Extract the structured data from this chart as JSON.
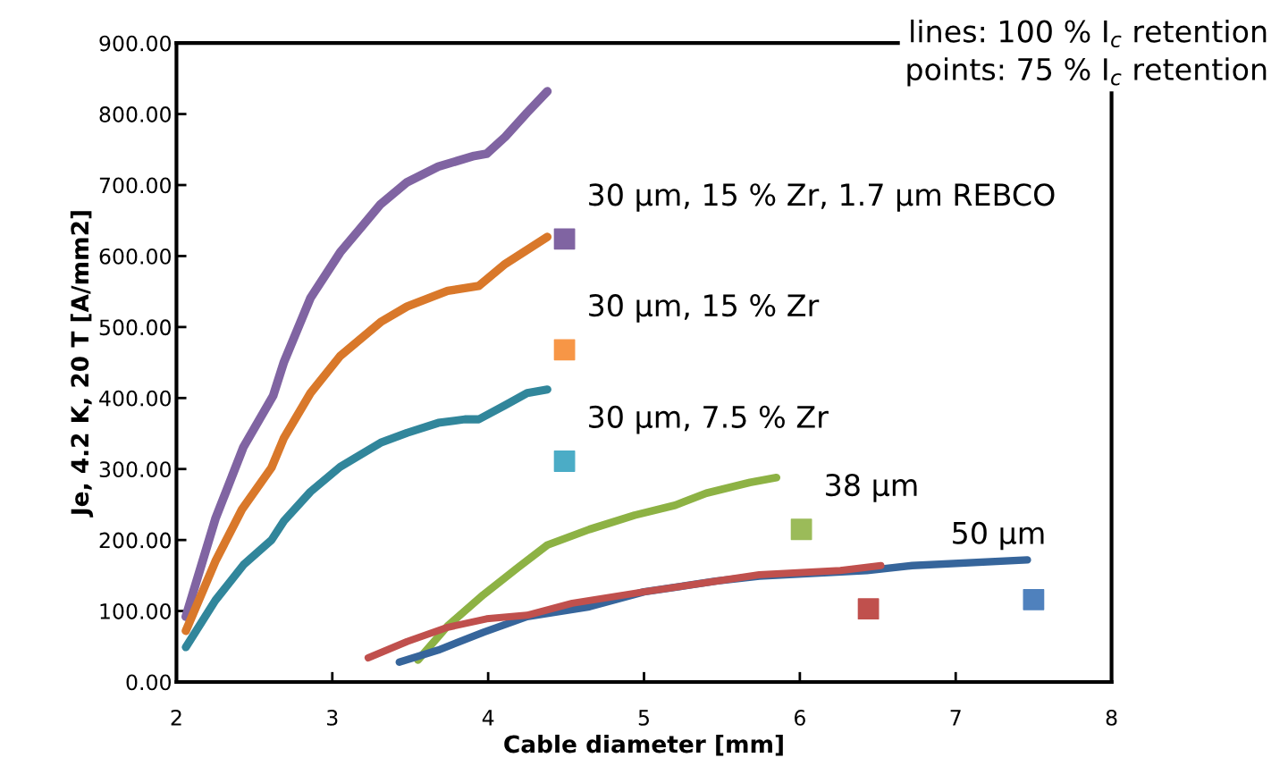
{
  "chart_data": {
    "type": "line",
    "xlabel": "Cable diameter [mm]",
    "ylabel": "Je, 4.2 K, 20 T [A/mm2]",
    "xlim": [
      2,
      8
    ],
    "xticks": [
      2,
      3,
      4,
      5,
      6,
      7,
      8
    ],
    "ylim": [
      0,
      900
    ],
    "yticks": [
      {
        "value": 0,
        "label": "0.00"
      },
      {
        "value": 100,
        "label": "100.00"
      },
      {
        "value": 200,
        "label": "200.00"
      },
      {
        "value": 300,
        "label": "300.00"
      },
      {
        "value": 400,
        "label": "400.00"
      },
      {
        "value": 500,
        "label": "500.00"
      },
      {
        "value": 600,
        "label": "600.00"
      },
      {
        "value": 700,
        "label": "700.00"
      },
      {
        "value": 800,
        "label": "800.00"
      },
      {
        "value": 900,
        "label": "900.00"
      }
    ],
    "grid": false,
    "legend": false,
    "series": [
      {
        "color": "#8064a2",
        "x": [
          2.06,
          2.25,
          2.43,
          2.62,
          2.69,
          2.86,
          3.05,
          3.31,
          3.48,
          3.68,
          3.91,
          3.99,
          4.11,
          4.25,
          4.38
        ],
        "values": [
          92,
          230,
          331,
          403,
          451,
          541,
          605,
          673,
          704,
          726,
          741,
          744,
          768,
          802,
          832
        ]
      },
      {
        "color": "#d9782a",
        "x": [
          2.06,
          2.25,
          2.42,
          2.61,
          2.69,
          2.86,
          3.05,
          3.31,
          3.48,
          3.74,
          3.94,
          4.11,
          4.38
        ],
        "values": [
          72,
          170,
          243,
          302,
          344,
          407,
          459,
          507,
          529,
          551,
          558,
          589,
          627
        ]
      },
      {
        "color": "#31869b",
        "x": [
          2.06,
          2.25,
          2.43,
          2.61,
          2.69,
          2.86,
          3.05,
          3.31,
          3.48,
          3.68,
          3.85,
          3.94,
          4.11,
          4.25,
          4.38
        ],
        "values": [
          49,
          115,
          165,
          200,
          227,
          268,
          303,
          337,
          351,
          365,
          370,
          370,
          390,
          407,
          412
        ]
      },
      {
        "color": "#8db244",
        "x": [
          3.55,
          3.74,
          3.97,
          4.19,
          4.38,
          4.65,
          4.94,
          5.2,
          5.4,
          5.68,
          5.85
        ],
        "values": [
          31,
          79,
          123,
          161,
          193,
          215,
          235,
          249,
          266,
          281,
          288
        ]
      },
      {
        "color": "#36659b",
        "x": [
          3.43,
          3.68,
          3.97,
          4.25,
          4.65,
          5.0,
          5.46,
          5.74,
          6.43,
          6.72,
          7.46
        ],
        "values": [
          28,
          45,
          70,
          92,
          106,
          127,
          142,
          149,
          157,
          164,
          172
        ]
      },
      {
        "color": "#c0504d",
        "x": [
          3.23,
          3.48,
          3.74,
          3.99,
          4.25,
          4.54,
          5.0,
          5.46,
          5.74,
          6.26,
          6.52
        ],
        "values": [
          34,
          57,
          77,
          89,
          94,
          111,
          127,
          142,
          151,
          157,
          164
        ]
      },
      {
        "type": "scatter",
        "marker": "square",
        "color": "#8064a2",
        "x": [
          4.49
        ],
        "values": [
          624
        ]
      },
      {
        "type": "scatter",
        "marker": "square",
        "color": "#f79646",
        "x": [
          4.49
        ],
        "values": [
          468
        ]
      },
      {
        "type": "scatter",
        "marker": "square",
        "color": "#4bacc6",
        "x": [
          4.49
        ],
        "values": [
          311
        ]
      },
      {
        "type": "scatter",
        "marker": "square",
        "color": "#9bbb59",
        "x": [
          6.01
        ],
        "values": [
          215
        ]
      },
      {
        "type": "scatter",
        "marker": "square",
        "color": "#c0504d",
        "x": [
          6.44
        ],
        "values": [
          103
        ]
      },
      {
        "type": "scatter",
        "marker": "square",
        "color": "#4f81bd",
        "x": [
          7.5
        ],
        "values": [
          116
        ]
      }
    ],
    "annotations": [
      {
        "text": "30 µm, 15 % Zr, 1.7 µm REBCO",
        "x": 4.49,
        "y": 624
      },
      {
        "text": "30 µm, 15 % Zr",
        "x": 4.49,
        "y": 468
      },
      {
        "text": "30 µm, 7.5 % Zr",
        "x": 4.49,
        "y": 311
      },
      {
        "text": "38 µm",
        "x": 6.01,
        "y": 215
      },
      {
        "text": "50 µm",
        "x": 7.5,
        "y": 116
      },
      "lines: 100 % I$_{c}$ retention\npoints: 75 % I$_{c}$ retention"
    ]
  }
}
